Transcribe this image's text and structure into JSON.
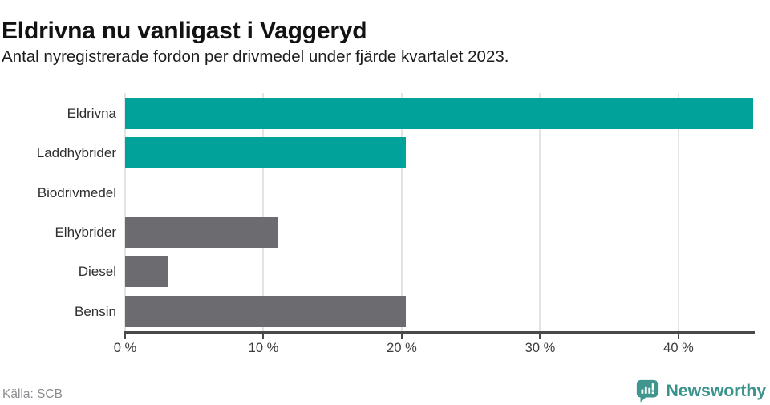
{
  "chart_data": {
    "type": "bar",
    "orientation": "horizontal",
    "title": "Eldrivna nu vanligast i Vaggeryd",
    "subtitle": "Antal nyregistrerade fordon per drivmedel under fjärde kvartalet 2023.",
    "categories": [
      "Eldrivna",
      "Laddhybrider",
      "Biodrivmedel",
      "Elhybrider",
      "Diesel",
      "Bensin"
    ],
    "values": [
      45.4,
      20.3,
      0,
      11,
      3.1,
      20.3
    ],
    "unit": "%",
    "bar_colors": [
      "#00a29a",
      "#00a29a",
      "#6b6b70",
      "#6b6b70",
      "#6b6b70",
      "#6b6b70"
    ],
    "xlim": [
      0,
      45.45
    ],
    "x_ticks": [
      {
        "value": 0,
        "label": "0 %"
      },
      {
        "value": 10,
        "label": "10 %"
      },
      {
        "value": 20,
        "label": "20 %"
      },
      {
        "value": 30,
        "label": "30 %"
      },
      {
        "value": 40,
        "label": "40 %"
      }
    ],
    "grid": "vertical",
    "legend": "none",
    "highlight_color": "#00a29a",
    "neutral_color": "#6b6b70"
  },
  "footer": {
    "source": "Källa: SCB",
    "brand": "Newsworthy",
    "brand_color": "#3a938c",
    "icon": "newsworthy-chart-bubble-icon",
    "icon_color": "#3e968f"
  },
  "colors": {
    "gridline": "#e4e4e4",
    "axis": "#4a4a4a",
    "title": "#121212",
    "source_text": "#8d8d92"
  }
}
